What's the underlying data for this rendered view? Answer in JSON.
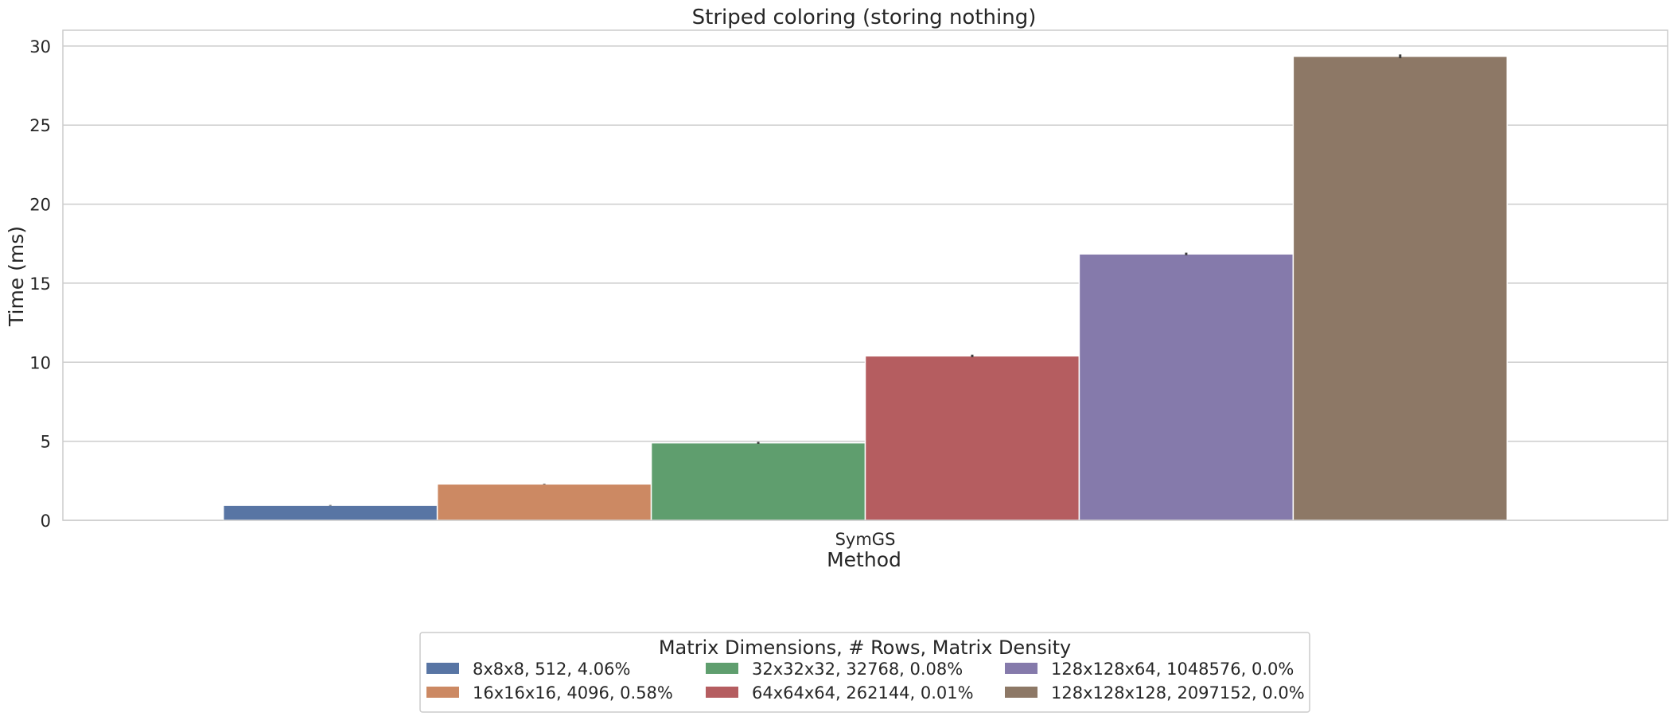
{
  "chart_data": {
    "type": "bar",
    "title": "Striped coloring (storing nothing)",
    "xlabel": "Method",
    "ylabel": "Time (ms)",
    "categories": [
      "SymGS"
    ],
    "ylim": [
      0,
      31
    ],
    "yticks": [
      0,
      5,
      10,
      15,
      20,
      25,
      30
    ],
    "grid": true,
    "legend_position": "bottom-center",
    "legend_title": "Matrix Dimensions, # Rows, Matrix Density",
    "series": [
      {
        "name": "8x8x8, 512, 4.06%",
        "values": [
          0.95
        ],
        "error": [
          0.02
        ],
        "color": "#5875a4"
      },
      {
        "name": "16x16x16, 4096, 0.58%",
        "values": [
          2.3
        ],
        "error": [
          0.02
        ],
        "color": "#cc8963"
      },
      {
        "name": "32x32x32, 32768, 0.08%",
        "values": [
          4.9
        ],
        "error": [
          0.06
        ],
        "color": "#5f9e6e"
      },
      {
        "name": "64x64x64, 262144, 0.01%",
        "values": [
          10.4
        ],
        "error": [
          0.08
        ],
        "color": "#b55d60"
      },
      {
        "name": "128x128x64, 1048576, 0.0%",
        "values": [
          16.85
        ],
        "error": [
          0.08
        ],
        "color": "#857aab"
      },
      {
        "name": "128x128x128, 2097152, 0.0%",
        "values": [
          29.35
        ],
        "error": [
          0.12
        ],
        "color": "#8d7866"
      }
    ]
  }
}
